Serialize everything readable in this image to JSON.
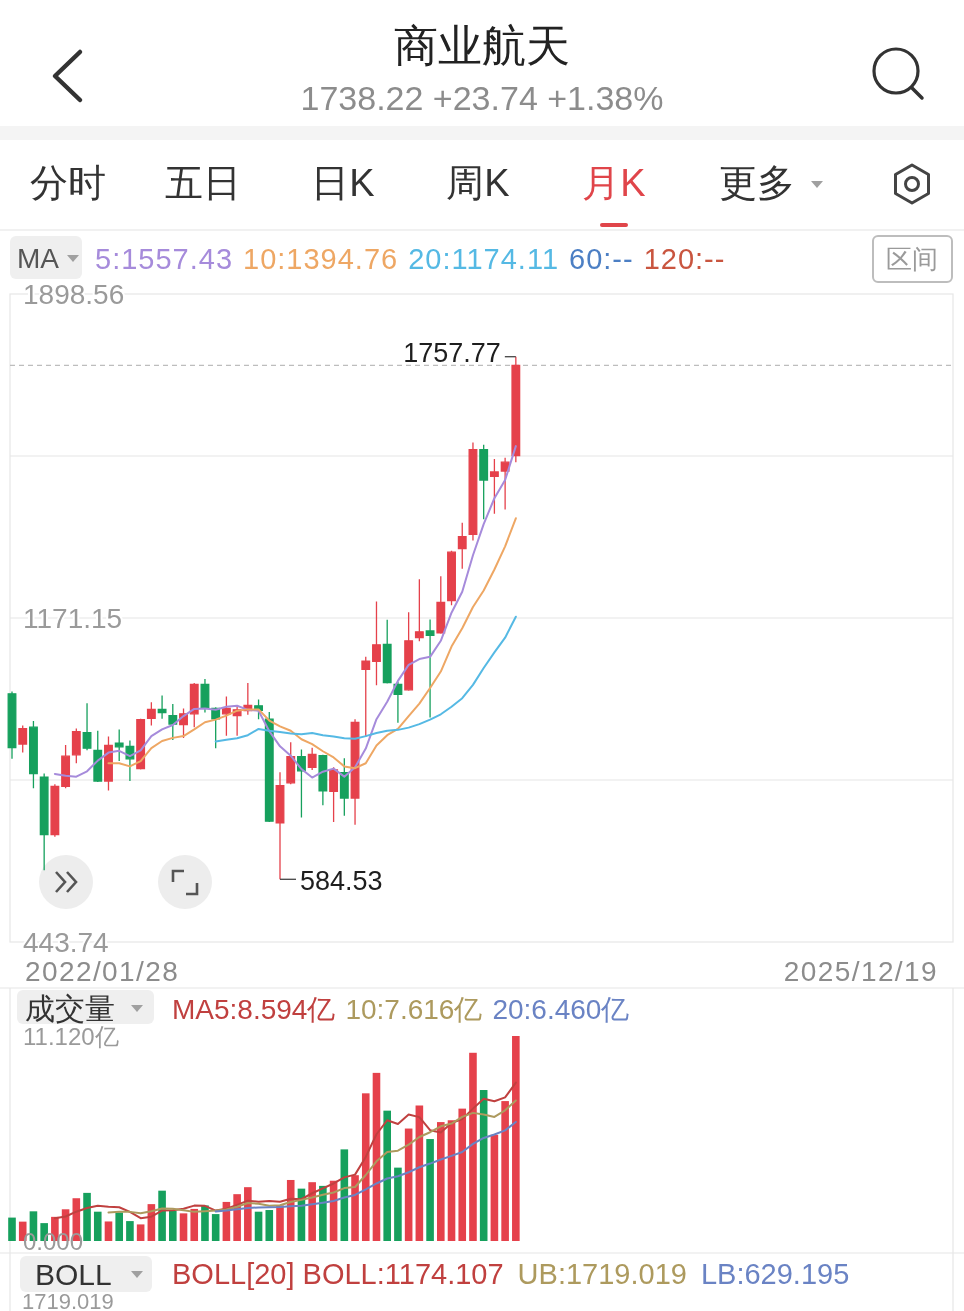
{
  "chart_data": [
    {
      "type": "candlestick",
      "title": "商业航天",
      "subtitle": "1738.22 +23.74 +1.38%",
      "categories": [
        null,
        null,
        null,
        null,
        null,
        null,
        null,
        null,
        null,
        null,
        null,
        null,
        null,
        null,
        null,
        null,
        null,
        null,
        null,
        null,
        null,
        null,
        null,
        null,
        null,
        null,
        null,
        null,
        null,
        null,
        null,
        null,
        null,
        null,
        null,
        null,
        null,
        null,
        null,
        null,
        null,
        null,
        null,
        null,
        null,
        null,
        null,
        null
      ],
      "ohlc": [
        [
          1001,
          1006,
          855,
          880
        ],
        [
          888,
          930,
          869,
          923
        ],
        [
          926,
          940,
          789,
          822
        ],
        [
          814,
          822,
          605,
          685
        ],
        [
          685,
          798,
          680,
          793
        ],
        [
          793,
          886,
          789,
          861
        ],
        [
          864,
          923,
          845,
          916
        ],
        [
          914,
          980,
          874,
          879
        ],
        [
          874,
          918,
          803,
          805
        ],
        [
          805,
          905,
          784,
          885
        ],
        [
          890,
          921,
          850,
          882
        ],
        [
          883,
          896,
          805,
          855
        ],
        [
          833,
          945,
          831,
          943
        ],
        [
          946,
          982,
          930,
          966
        ],
        [
          966,
          997,
          945,
          959
        ],
        [
          952,
          978,
          897,
          933
        ],
        [
          932,
          968,
          902,
          956
        ],
        [
          956,
          1025,
          926,
          1022
        ],
        [
          1022,
          1034,
          959,
          970
        ],
        [
          968,
          971,
          879,
          945
        ],
        [
          956,
          995,
          907,
          968
        ],
        [
          952,
          973,
          907,
          965
        ],
        [
          963,
          1025,
          954,
          975
        ],
        [
          974,
          988,
          944,
          964
        ],
        [
          944,
          960,
          713,
          715
        ],
        [
          711,
          825,
          584.53,
          795
        ],
        [
          801,
          892,
          798,
          860
        ],
        [
          860,
          876,
          723,
          828
        ],
        [
          836,
          880,
          830,
          865
        ],
        [
          862,
          864,
          751,
          783
        ],
        [
          782,
          836,
          713,
          830
        ],
        [
          824,
          856,
          727,
          767
        ],
        [
          767,
          944,
          707,
          937
        ],
        [
          1056,
          1084,
          904,
          1074
        ],
        [
          1074,
          1208,
          1020,
          1111
        ],
        [
          1112,
          1167,
          1024,
          1026
        ],
        [
          1022,
          1028,
          936,
          1000
        ],
        [
          1010,
          1184,
          1008,
          1120
        ],
        [
          1127,
          1258,
          1119,
          1140
        ],
        [
          1142,
          1168,
          948,
          1132
        ],
        [
          1138,
          1265,
          1136,
          1206
        ],
        [
          1210,
          1322,
          1200,
          1319
        ],
        [
          1327,
          1385,
          1282,
          1354
        ],
        [
          1359,
          1565,
          1345,
          1549
        ],
        [
          1549,
          1560,
          1393,
          1481
        ],
        [
          1489,
          1528,
          1405,
          1499
        ],
        [
          1501,
          1531,
          1415,
          1521
        ],
        [
          1536,
          1757.77,
          1521,
          1738.22
        ]
      ],
      "colors": [
        "#16a05d",
        "#e5414b",
        "#16a05d",
        "#16a05d",
        "#e5414b",
        "#e5414b",
        "#e5414b",
        "#16a05d",
        "#16a05d",
        "#e5414b",
        "#16a05d",
        "#16a05d",
        "#e5414b",
        "#e5414b",
        "#16a05d",
        "#16a05d",
        "#e5414b",
        "#e5414b",
        "#16a05d",
        "#16a05d",
        "#e5414b",
        "#e5414b",
        "#e5414b",
        "#16a05d",
        "#16a05d",
        "#e5414b",
        "#e5414b",
        "#16a05d",
        "#e5414b",
        "#16a05d",
        "#e5414b",
        "#16a05d",
        "#e5414b",
        "#e5414b",
        "#e5414b",
        "#16a05d",
        "#16a05d",
        "#e5414b",
        "#e5414b",
        "#16a05d",
        "#e5414b",
        "#e5414b",
        "#e5414b",
        "#e5414b",
        "#16a05d",
        "#e5414b",
        "#e5414b",
        "#e5414b"
      ],
      "series": [
        {
          "name": "5:1557.43",
          "type": "line",
          "color": "#a68bdb",
          "values": [
            null,
            null,
            null,
            null,
            821,
            817,
            815,
            827,
            851,
            869,
            873,
            861,
            874,
            906,
            921,
            931,
            951,
            967,
            968,
            965,
            972,
            974,
            965,
            963,
            917,
            883,
            862,
            832,
            813,
            826,
            833,
            815,
            836,
            878,
            944,
            983,
            1030,
            1066,
            1079,
            1084,
            1120,
            1183,
            1230,
            1312,
            1382,
            1440,
            1481,
            1557
          ]
        },
        {
          "name": "10:1394.76",
          "type": "line",
          "color": "#eea764",
          "values": [
            null,
            null,
            null,
            null,
            null,
            null,
            null,
            null,
            null,
            845,
            845,
            838,
            850,
            879,
            895,
            902,
            906,
            921,
            937,
            943,
            952,
            963,
            966,
            966,
            941,
            928,
            918,
            899,
            888,
            872,
            858,
            838,
            834,
            845,
            885,
            908,
            922,
            951,
            979,
            1014,
            1051,
            1107,
            1148,
            1196,
            1233,
            1280,
            1332,
            1395
          ]
        },
        {
          "name": "20:1174.11",
          "type": "line",
          "color": "#55b9e4",
          "values": [
            null,
            null,
            null,
            null,
            null,
            null,
            null,
            null,
            null,
            null,
            null,
            null,
            null,
            null,
            null,
            null,
            null,
            null,
            null,
            894,
            898,
            901,
            908,
            922,
            918,
            915,
            912,
            910,
            913,
            908,
            905,
            901,
            900,
            906,
            913,
            918,
            920,
            925,
            933,
            943,
            955,
            972,
            991,
            1021,
            1059,
            1094,
            1127,
            1174
          ]
        }
      ],
      "ylim": [
        443.74,
        1898.56
      ],
      "yticks": [
        1898.56,
        {
          "value": 1534.86,
          "label": null
        },
        1171.15,
        {
          "value": 807.45,
          "label": null
        },
        443.74
      ],
      "tick_labels": "y",
      "grid": "y",
      "legend": "top",
      "ref_lines": [
        {
          "axis": "y",
          "value": 1738.22,
          "color": "#bdbdbd",
          "line_style": "dashed"
        }
      ],
      "annotations": [
        "分时",
        "五日",
        "日K",
        "周K",
        "月K",
        "更多",
        "MA",
        "60:--",
        "120:--",
        "区间",
        "2022/01/28",
        "2025/12/19",
        "1757.77",
        "584.53"
      ]
    },
    {
      "type": "bar",
      "title": "成交量",
      "categories": [
        null,
        null,
        null,
        null,
        null,
        null,
        null,
        null,
        null,
        null,
        null,
        null,
        null,
        null,
        null,
        null,
        null,
        null,
        null,
        null,
        null,
        null,
        null,
        null,
        null,
        null,
        null,
        null,
        null,
        null,
        null,
        null,
        null,
        null,
        null,
        null,
        null,
        null,
        null,
        null,
        null,
        null,
        null,
        null,
        null,
        null,
        null,
        null
      ],
      "values": [
        1.27,
        1.05,
        1.61,
        0.97,
        1.31,
        1.72,
        2.32,
        2.61,
        1.59,
        1.06,
        1.55,
        1.08,
        0.9,
        2,
        2.73,
        1.64,
        1.5,
        1.74,
        1.93,
        1.46,
        2.12,
        2.54,
        2.92,
        1.59,
        1.68,
        1.93,
        3.31,
        2.84,
        3.19,
        2.99,
        3.27,
        4.97,
        3.57,
        8.01,
        9.12,
        7.07,
        3.98,
        6.1,
        7.35,
        5.53,
        6.45,
        6.55,
        7.18,
        10.21,
        8.19,
        5.76,
        7.59,
        11.12
      ],
      "colors": [
        "#16a05d",
        "#e5414b",
        "#16a05d",
        "#16a05d",
        "#e5414b",
        "#e5414b",
        "#e5414b",
        "#16a05d",
        "#16a05d",
        "#e5414b",
        "#16a05d",
        "#16a05d",
        "#e5414b",
        "#e5414b",
        "#16a05d",
        "#16a05d",
        "#e5414b",
        "#e5414b",
        "#16a05d",
        "#16a05d",
        "#e5414b",
        "#e5414b",
        "#e5414b",
        "#16a05d",
        "#16a05d",
        "#e5414b",
        "#e5414b",
        "#16a05d",
        "#e5414b",
        "#16a05d",
        "#e5414b",
        "#16a05d",
        "#e5414b",
        "#e5414b",
        "#e5414b",
        "#16a05d",
        "#16a05d",
        "#e5414b",
        "#e5414b",
        "#16a05d",
        "#e5414b",
        "#e5414b",
        "#e5414b",
        "#e5414b",
        "#16a05d",
        "#e5414b",
        "#e5414b",
        "#e5414b"
      ],
      "series": [
        {
          "name": "MA5:8.594亿",
          "type": "line",
          "color": "#c0403f",
          "values": [
            null,
            null,
            null,
            null,
            1.24,
            1.33,
            1.59,
            1.79,
            1.91,
            1.86,
            1.83,
            1.58,
            1.24,
            1.32,
            1.65,
            1.67,
            1.75,
            1.92,
            1.91,
            1.65,
            1.75,
            1.96,
            2.19,
            2.13,
            2.17,
            2.13,
            2.29,
            2.27,
            2.59,
            2.85,
            3.12,
            3.45,
            3.6,
            4.56,
            5.79,
            6.55,
            6.35,
            6.86,
            6.72,
            6.01,
            5.88,
            6.4,
            6.61,
            7.18,
            7.72,
            7.58,
            7.79,
            8.59
          ]
        },
        {
          "name": "10:7.616亿",
          "type": "line",
          "color": "#ad9a5e",
          "values": [
            null,
            null,
            null,
            null,
            null,
            null,
            null,
            null,
            null,
            1.55,
            1.58,
            1.58,
            1.51,
            1.61,
            1.76,
            1.75,
            1.67,
            1.58,
            1.61,
            1.65,
            1.71,
            1.86,
            2.06,
            2.02,
            1.91,
            1.94,
            2.12,
            2.23,
            2.36,
            2.51,
            2.63,
            2.87,
            2.93,
            3.58,
            4.32,
            4.83,
            4.9,
            5.23,
            5.64,
            5.9,
            6.22,
            6.37,
            6.73,
            6.95,
            6.86,
            6.73,
            7.09,
            7.62
          ]
        },
        {
          "name": "20:6.460亿",
          "type": "line",
          "color": "#6a83c4",
          "values": [
            null,
            null,
            null,
            null,
            null,
            null,
            null,
            null,
            null,
            null,
            null,
            null,
            null,
            null,
            null,
            null,
            null,
            null,
            null,
            1.6,
            1.65,
            1.72,
            1.79,
            1.82,
            1.83,
            1.85,
            1.89,
            1.91,
            1.99,
            2.08,
            2.17,
            2.36,
            2.5,
            2.8,
            3.12,
            3.39,
            3.51,
            3.73,
            4,
            4.2,
            4.42,
            4.62,
            4.83,
            5.27,
            5.59,
            5.78,
            6,
            6.46
          ]
        }
      ],
      "ylim": [
        0,
        11.12
      ],
      "yticks": [
        {
          "value": 11.12,
          "label": "11.120亿"
        },
        {
          "value": 0,
          "label": "0.000"
        }
      ],
      "tick_labels": "y",
      "legend": "top"
    },
    {
      "type": "other",
      "title": "BOLL",
      "annotations": [
        "BOLL[20] BOLL:1174.107",
        "UB:1719.019",
        "LB:629.195",
        "1719.019"
      ]
    }
  ]
}
